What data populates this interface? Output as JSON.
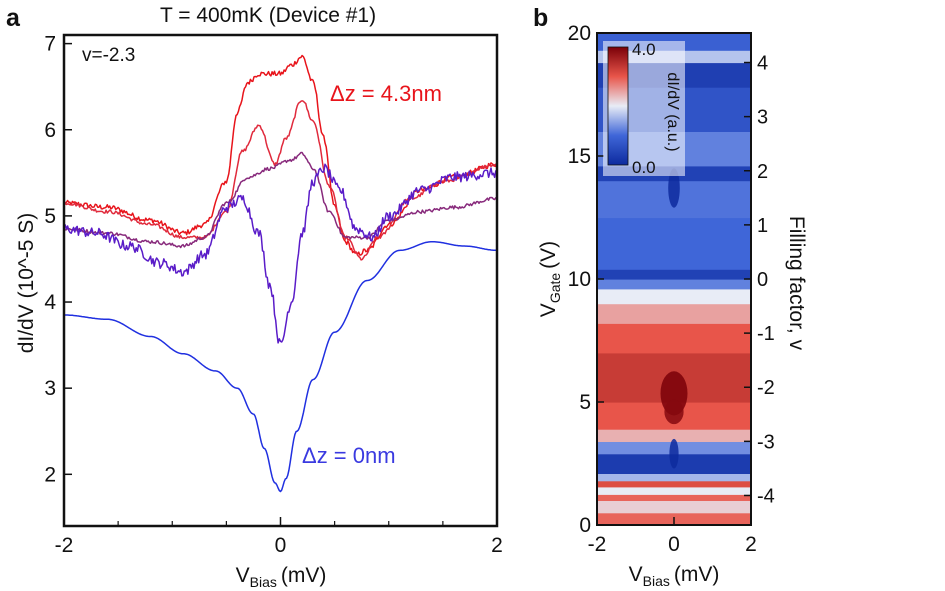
{
  "chart_data": [
    {
      "panel_letter": "a",
      "type": "line",
      "title": "T = 400mK (Device #1)",
      "inset_label": "v=-2.3",
      "xlabel_main": "V",
      "xlabel_sub": "Bias",
      "xlabel_unit": "(mV)",
      "ylabel": "dI/dV (10^-5 S)",
      "xlim": [
        -2,
        2
      ],
      "ylim": [
        1.4,
        7.1
      ],
      "xticks": [
        -2,
        0,
        2
      ],
      "xticks_minor": [
        -1.5,
        -1,
        -0.5,
        0.5,
        1,
        1.5
      ],
      "yticks": [
        2,
        3,
        4,
        5,
        6,
        7
      ],
      "annotation_top": "Δz = 4.3nm",
      "annotation_bottom": "Δz = 0nm",
      "annotation_top_color": "#e8141b",
      "annotation_bottom_color": "#3a3ae0",
      "series": [
        {
          "name": "Δz = 4.3nm",
          "color": "#e8141b",
          "noise": 0.03,
          "x": [
            -2,
            -1.6,
            -1.2,
            -0.9,
            -0.7,
            -0.5,
            -0.4,
            -0.3,
            -0.2,
            0,
            0.1,
            0.2,
            0.3,
            0.4,
            0.5,
            0.6,
            0.7,
            0.8,
            1.0,
            1.3,
            1.6,
            2
          ],
          "y": [
            5.15,
            5.1,
            4.95,
            4.8,
            4.9,
            5.4,
            6.2,
            6.55,
            6.65,
            6.65,
            6.75,
            6.85,
            6.55,
            5.9,
            5.1,
            4.7,
            4.55,
            4.6,
            4.9,
            5.3,
            5.45,
            5.6
          ]
        },
        {
          "name": "series-2",
          "color": "#e02a3c",
          "noise": 0.02,
          "x": [
            -2,
            -1.6,
            -1.2,
            -0.9,
            -0.7,
            -0.5,
            -0.35,
            -0.2,
            -0.05,
            0.05,
            0.2,
            0.3,
            0.45,
            0.6,
            0.75,
            0.9,
            1.2,
            1.5,
            2
          ],
          "y": [
            5.15,
            5.05,
            4.9,
            4.75,
            4.75,
            5.05,
            5.75,
            6.05,
            5.6,
            5.9,
            6.35,
            6.1,
            5.35,
            4.75,
            4.5,
            4.75,
            5.2,
            5.4,
            5.6
          ]
        },
        {
          "name": "series-3",
          "color": "#882a7c",
          "noise": 0.02,
          "x": [
            -2,
            -1.6,
            -1.2,
            -0.9,
            -0.7,
            -0.5,
            -0.3,
            -0.1,
            0.1,
            0.2,
            0.3,
            0.45,
            0.6,
            0.8,
            1.0,
            1.3,
            1.6,
            2
          ],
          "y": [
            4.85,
            4.8,
            4.7,
            4.65,
            4.75,
            5.15,
            5.45,
            5.55,
            5.65,
            5.72,
            5.55,
            5.05,
            4.75,
            4.75,
            4.95,
            5.05,
            5.1,
            5.2
          ]
        },
        {
          "name": "series-4",
          "color": "#5a1cc8",
          "noise": 0.06,
          "x": [
            -2,
            -1.7,
            -1.4,
            -1.1,
            -0.9,
            -0.7,
            -0.5,
            -0.35,
            -0.2,
            -0.1,
            0,
            0.1,
            0.2,
            0.3,
            0.4,
            0.55,
            0.7,
            0.85,
            1.0,
            1.3,
            1.6,
            2
          ],
          "y": [
            4.85,
            4.8,
            4.65,
            4.45,
            4.35,
            4.55,
            5.1,
            5.2,
            4.8,
            4.2,
            3.5,
            4.0,
            4.8,
            5.4,
            5.55,
            5.3,
            4.85,
            4.75,
            5.0,
            5.3,
            5.45,
            5.5
          ]
        },
        {
          "name": "Δz = 0nm",
          "color": "#2030e0",
          "noise": 0,
          "x": [
            -2,
            -1.6,
            -1.2,
            -0.9,
            -0.6,
            -0.4,
            -0.25,
            -0.15,
            -0.05,
            0,
            0.05,
            0.15,
            0.3,
            0.5,
            0.8,
            1.1,
            1.4,
            1.7,
            2
          ],
          "y": [
            3.85,
            3.8,
            3.6,
            3.4,
            3.2,
            3.0,
            2.7,
            2.3,
            1.9,
            1.8,
            1.95,
            2.5,
            3.1,
            3.65,
            4.25,
            4.6,
            4.7,
            4.65,
            4.6
          ]
        }
      ]
    },
    {
      "panel_letter": "b",
      "type": "heatmap",
      "xlabel_main": "V",
      "xlabel_sub": "Bias",
      "xlabel_unit": "(mV)",
      "ylabel_main": "V",
      "ylabel_sub": "Gate",
      "ylabel_unit": "(V)",
      "right_label": "Filling factor, v",
      "xlim": [
        -2,
        2
      ],
      "ylim": [
        0,
        20
      ],
      "xticks": [
        -2,
        0,
        2
      ],
      "yticks": [
        0,
        5,
        10,
        15,
        20
      ],
      "filling_factor_ticks": [
        {
          "label": "4",
          "vgate": 18.8
        },
        {
          "label": "3",
          "vgate": 16.6
        },
        {
          "label": "2",
          "vgate": 14.4
        },
        {
          "label": "1",
          "vgate": 12.2
        },
        {
          "label": "0",
          "vgate": 10.0
        },
        {
          "label": "-1",
          "vgate": 7.8
        },
        {
          "label": "-2",
          "vgate": 5.6
        },
        {
          "label": "-3",
          "vgate": 3.4
        },
        {
          "label": "-4",
          "vgate": 1.2
        }
      ],
      "colorbar": {
        "label": "dI/dV (a.u.)",
        "min": 0.0,
        "max": 4.0,
        "min_label": "0.0",
        "max_label": "4.0"
      },
      "bands": [
        {
          "from": 0.0,
          "to": 0.5,
          "value": 2.9
        },
        {
          "from": 0.5,
          "to": 1.0,
          "value": 2.2
        },
        {
          "from": 1.0,
          "to": 1.25,
          "value": 2.9
        },
        {
          "from": 1.25,
          "to": 1.55,
          "value": 2.0
        },
        {
          "from": 1.55,
          "to": 1.8,
          "value": 3.1
        },
        {
          "from": 1.8,
          "to": 2.1,
          "value": 1.6
        },
        {
          "from": 2.1,
          "to": 2.9,
          "value": 0.3
        },
        {
          "from": 2.9,
          "to": 3.4,
          "value": 1.3
        },
        {
          "from": 3.4,
          "to": 3.9,
          "value": 2.4
        },
        {
          "from": 3.9,
          "to": 5.0,
          "value": 3.0
        },
        {
          "from": 5.0,
          "to": 7.0,
          "value": 3.3
        },
        {
          "from": 7.0,
          "to": 8.2,
          "value": 3.0
        },
        {
          "from": 8.2,
          "to": 9.0,
          "value": 2.5
        },
        {
          "from": 9.0,
          "to": 9.6,
          "value": 2.0
        },
        {
          "from": 9.6,
          "to": 10.0,
          "value": 1.2
        },
        {
          "from": 10.0,
          "to": 10.4,
          "value": 0.4
        },
        {
          "from": 10.4,
          "to": 12.5,
          "value": 1.0
        },
        {
          "from": 12.5,
          "to": 14.0,
          "value": 1.1
        },
        {
          "from": 14.0,
          "to": 14.6,
          "value": 0.4
        },
        {
          "from": 14.6,
          "to": 16.0,
          "value": 1.2
        },
        {
          "from": 16.0,
          "to": 17.8,
          "value": 0.7
        },
        {
          "from": 17.8,
          "to": 18.8,
          "value": 0.35
        },
        {
          "from": 18.8,
          "to": 19.3,
          "value": 1.7
        },
        {
          "from": 19.3,
          "to": 20.0,
          "value": 0.9
        }
      ],
      "features": [
        {
          "vbias": 0.0,
          "vgate": 5.35,
          "width": 0.35,
          "height": 0.9,
          "value": 4.0
        },
        {
          "vbias": 0.0,
          "vgate": 4.6,
          "width": 0.25,
          "height": 0.5,
          "value": 3.9
        },
        {
          "vbias": 0.0,
          "vgate": 2.9,
          "width": 0.12,
          "height": 0.6,
          "value": 0.0
        },
        {
          "vbias": 0.0,
          "vgate": 13.7,
          "width": 0.15,
          "height": 0.8,
          "value": 0.0
        }
      ]
    }
  ]
}
